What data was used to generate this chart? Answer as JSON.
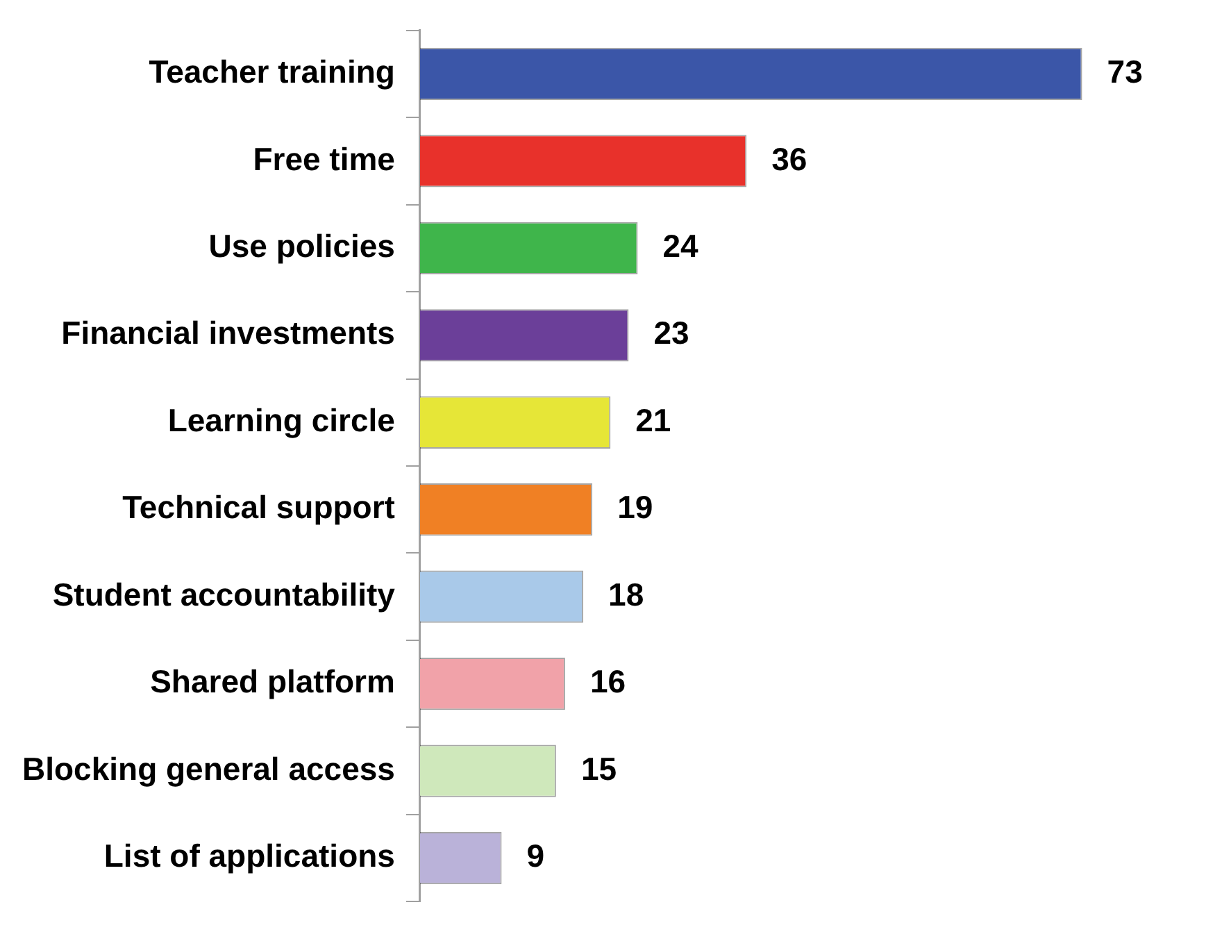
{
  "chart_data": {
    "type": "bar",
    "orientation": "horizontal",
    "categories": [
      "Teacher training",
      "Free time",
      "Use policies",
      "Financial investments",
      "Learning circle",
      "Technical support",
      "Student accountability",
      "Shared platform",
      "Blocking general access",
      "List of applications"
    ],
    "values": [
      73,
      36,
      24,
      23,
      21,
      19,
      18,
      16,
      15,
      9
    ],
    "colors": [
      "#3b56a8",
      "#e8312b",
      "#3fb54b",
      "#6b3f99",
      "#e6e637",
      "#f08024",
      "#a9c9e9",
      "#f1a2a9",
      "#cfe8bb",
      "#bab2d9"
    ],
    "data_labels": true,
    "legend": false,
    "tick_labels": "y"
  }
}
